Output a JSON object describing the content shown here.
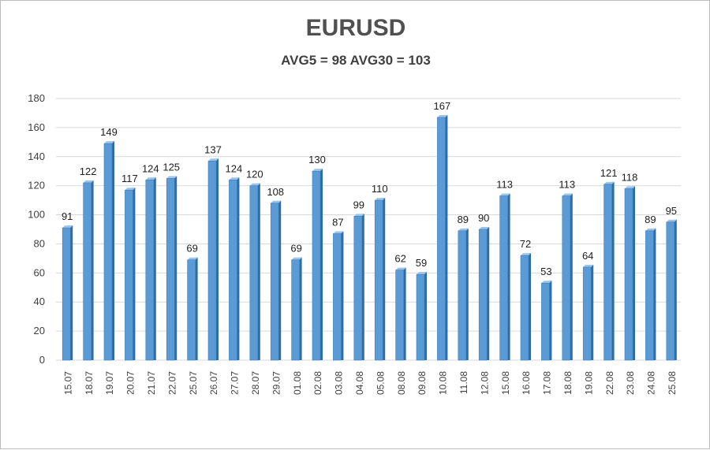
{
  "chart_data": {
    "type": "bar",
    "title": "EURUSD",
    "subtitle": "AVG5 = 98 AVG30 = 103",
    "categories": [
      "15.07",
      "18.07",
      "19.07",
      "20.07",
      "21.07",
      "22.07",
      "25.07",
      "26.07",
      "27.07",
      "28.07",
      "29.07",
      "01.08",
      "02.08",
      "03.08",
      "04.08",
      "05.08",
      "08.08",
      "09.08",
      "10.08",
      "11.08",
      "12.08",
      "15.08",
      "16.08",
      "17.08",
      "18.08",
      "19.08",
      "22.08",
      "23.08",
      "24.08",
      "25.08"
    ],
    "values": [
      91,
      122,
      149,
      117,
      124,
      125,
      69,
      137,
      124,
      120,
      108,
      69,
      130,
      87,
      99,
      110,
      62,
      59,
      167,
      89,
      90,
      113,
      72,
      53,
      113,
      64,
      121,
      118,
      89,
      95
    ],
    "ylim": [
      0,
      180
    ],
    "yticks": [
      0,
      20,
      40,
      60,
      80,
      100,
      120,
      140,
      160,
      180
    ],
    "grid": true,
    "legend": "none",
    "colors": {
      "bar_front": "#5b9bd5",
      "bar_side": "#2e6da4",
      "bar_top": "#9cc3e8",
      "grid": "#d9d9d9"
    }
  }
}
